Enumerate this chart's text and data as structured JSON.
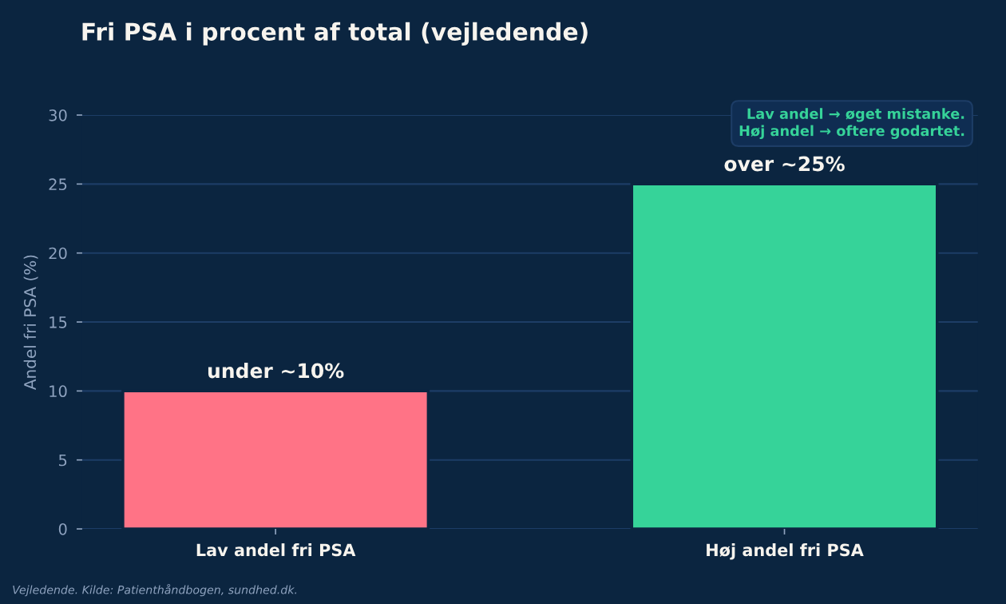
{
  "chart_data": {
    "type": "bar",
    "title": "Fri PSA i procent af total (vejledende)",
    "ylabel": "Andel fri PSA (%)",
    "categories": [
      "Lav andel fri PSA",
      "Høj andel fri PSA"
    ],
    "values": [
      10,
      25
    ],
    "colors": [
      "#ff7386",
      "#36d399"
    ],
    "value_labels": [
      "under ~10%",
      "over ~25%"
    ],
    "ylim": [
      0,
      30
    ],
    "yticks": [
      0,
      5,
      10,
      15,
      20,
      25,
      30
    ],
    "grid": "y",
    "annotations": [
      "Lav andel → øget mistanke.\nHøj andel → oftere godartet.",
      "Vejledende. Kilde: Patienthåndbogen, sundhed.dk."
    ]
  }
}
